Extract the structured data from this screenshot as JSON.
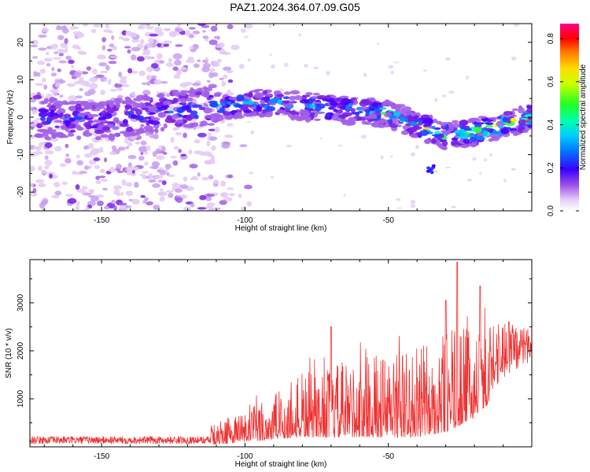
{
  "figure_title": "PAZ1.2024.364.07.09.G05",
  "chart_data": [
    {
      "type": "heatmap",
      "xlabel": "Height of straight line (km)",
      "ylabel": "Frequency (Hz)",
      "xlim": [
        -175,
        0
      ],
      "ylim": [
        -25,
        25
      ],
      "x_ticks": [
        -150,
        -100,
        -50
      ],
      "y_ticks": [
        -20,
        -10,
        0,
        10,
        20
      ],
      "colorbar": {
        "label": "Normalized spectral amplitude",
        "range": [
          0.0,
          0.87
        ],
        "ticks": [
          0.0,
          0.2,
          0.4,
          0.6,
          0.8
        ],
        "colormap": "rainbow-violet-to-magenta"
      },
      "ridge": {
        "description_points": [
          {
            "x": -170,
            "y": 0
          },
          {
            "x": -150,
            "y": -1
          },
          {
            "x": -125,
            "y": 2
          },
          {
            "x": -110,
            "y": 3
          },
          {
            "x": -95,
            "y": 4
          },
          {
            "x": -80,
            "y": 3
          },
          {
            "x": -65,
            "y": 2
          },
          {
            "x": -50,
            "y": 1
          },
          {
            "x": -40,
            "y": -2
          },
          {
            "x": -30,
            "y": -5
          },
          {
            "x": -20,
            "y": -4
          },
          {
            "x": -10,
            "y": -2
          },
          {
            "x": 0,
            "y": 0
          }
        ]
      }
    },
    {
      "type": "line",
      "xlabel": "Height of straight line (km)",
      "ylabel": "SNR (10 * v/v)",
      "xlim": [
        -175,
        0
      ],
      "ylim": [
        0,
        3900
      ],
      "x_ticks": [
        -150,
        -100,
        -50
      ],
      "y_ticks": [
        1000,
        2000,
        3000
      ],
      "color": "#f03030",
      "envelope": [
        {
          "x": -175,
          "lo": 20,
          "hi": 250
        },
        {
          "x": -150,
          "lo": 20,
          "hi": 250
        },
        {
          "x": -120,
          "lo": 30,
          "hi": 300
        },
        {
          "x": -110,
          "lo": 50,
          "hi": 500
        },
        {
          "x": -100,
          "lo": 100,
          "hi": 800
        },
        {
          "x": -90,
          "lo": 150,
          "hi": 1100
        },
        {
          "x": -80,
          "lo": 200,
          "hi": 1500
        },
        {
          "x": -70,
          "lo": 200,
          "hi": 1700
        },
        {
          "x": -60,
          "lo": 200,
          "hi": 1900
        },
        {
          "x": -50,
          "lo": 200,
          "hi": 2000
        },
        {
          "x": -40,
          "lo": 200,
          "hi": 2100
        },
        {
          "x": -30,
          "lo": 300,
          "hi": 2400
        },
        {
          "x": -20,
          "lo": 600,
          "hi": 2500
        },
        {
          "x": -10,
          "lo": 1200,
          "hi": 2500
        },
        {
          "x": 0,
          "lo": 1600,
          "hi": 2400
        }
      ],
      "peaks": [
        {
          "x": -70,
          "y": 2500
        },
        {
          "x": -30,
          "y": 3050
        },
        {
          "x": -26,
          "y": 3850
        },
        {
          "x": -18,
          "y": 3350
        },
        {
          "x": -8,
          "y": 2600
        }
      ]
    }
  ]
}
